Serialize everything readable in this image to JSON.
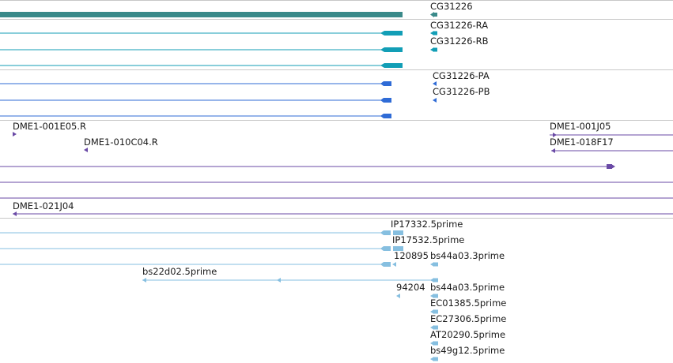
{
  "colors": {
    "gene": "#3a8a8a",
    "transcript": "#129eb6",
    "protein": "#2f6bd6",
    "clone": "#6a4aa6",
    "est": "#86bfe0",
    "separator": "#c8c8c8"
  },
  "tracks": {
    "gene": {
      "labels": [
        "CG31226"
      ]
    },
    "transcripts": {
      "labels": [
        "CG31226-RA",
        "CG31226-RB"
      ]
    },
    "proteins": {
      "labels": [
        "CG31226-PA",
        "CG31226-PB"
      ]
    },
    "clones": {
      "labels": [
        "DME1-001E05.R",
        "DME1-010C04.R",
        "DME1-001J05",
        "DME1-018F17",
        "DME1-021J04"
      ]
    },
    "ests": {
      "labels": [
        "IP17332.5prime",
        "IP17532.5prime",
        "120895",
        "bs44a03.3prime",
        "bs22d02.5prime",
        "94204",
        "bs44a03.5prime",
        "EC01385.5prime",
        "EC27306.5prime",
        "AT20290.5prime",
        "bs49g12.5prime"
      ]
    }
  }
}
